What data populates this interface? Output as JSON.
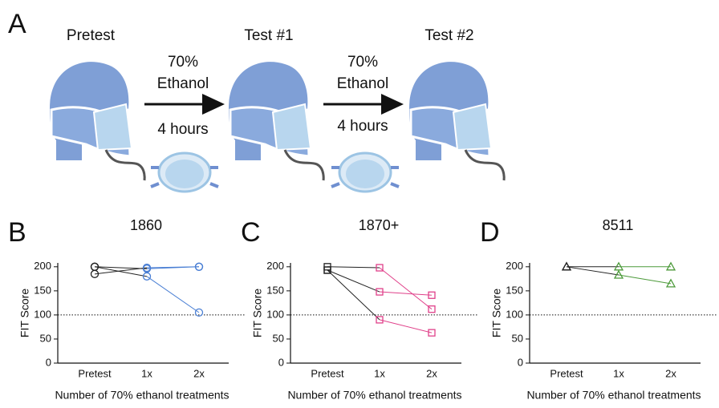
{
  "panel_a": {
    "label": "A",
    "stages": [
      "Pretest",
      "Test #1",
      "Test #2"
    ],
    "arrows": [
      {
        "top": "70%",
        "middle": "Ethanol",
        "bottom": "4 hours"
      },
      {
        "top": "70%",
        "middle": "Ethanol",
        "bottom": "4 hours"
      }
    ]
  },
  "chart_data": [
    {
      "type": "line",
      "panel": "B",
      "title": "1860",
      "y_label": "FIT Score",
      "x_label": "Number of 70% ethanol treatments",
      "categories": [
        "Pretest",
        "1x",
        "2x"
      ],
      "ylim": [
        0,
        208
      ],
      "yticks": [
        0,
        50,
        100,
        150,
        200
      ],
      "reference_line": 100,
      "marker": "circle",
      "pretest_color": "#222222",
      "series": [
        {
          "color": "#4a7fd4",
          "values": [
            200,
            196,
            200
          ]
        },
        {
          "color": "#4a7fd4",
          "values": [
            185,
            198,
            200
          ]
        },
        {
          "color": "#4a7fd4",
          "values": [
            200,
            180,
            105
          ]
        }
      ]
    },
    {
      "type": "line",
      "panel": "C",
      "title": "1870+",
      "y_label": "FIT Score",
      "x_label": "Number of 70% ethanol treatments",
      "categories": [
        "Pretest",
        "1x",
        "2x"
      ],
      "ylim": [
        0,
        208
      ],
      "yticks": [
        0,
        50,
        100,
        150,
        200
      ],
      "reference_line": 100,
      "marker": "square",
      "pretest_color": "#222222",
      "series": [
        {
          "color": "#e0408a",
          "values": [
            200,
            198,
            112
          ]
        },
        {
          "color": "#e0408a",
          "values": [
            193,
            148,
            141
          ]
        },
        {
          "color": "#e0408a",
          "values": [
            193,
            90,
            63
          ]
        }
      ]
    },
    {
      "type": "line",
      "panel": "D",
      "title": "8511",
      "y_label": "FIT Score",
      "x_label": "Number of 70% ethanol treatments",
      "categories": [
        "Pretest",
        "1x",
        "2x"
      ],
      "ylim": [
        0,
        208
      ],
      "yticks": [
        0,
        50,
        100,
        150,
        200
      ],
      "reference_line": 100,
      "marker": "triangle",
      "pretest_color": "#222222",
      "series": [
        {
          "color": "#4c9a3a",
          "values": [
            200,
            200,
            200
          ]
        },
        {
          "color": "#4c9a3a",
          "values": [
            200,
            183,
            165
          ]
        }
      ]
    }
  ]
}
